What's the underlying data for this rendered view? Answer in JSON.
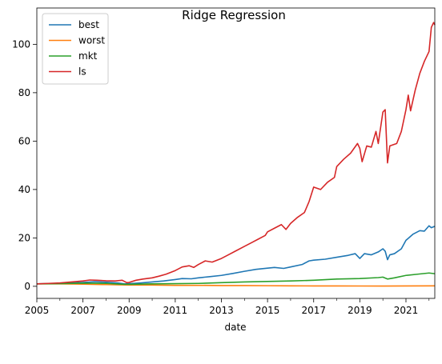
{
  "chart_data": {
    "type": "line",
    "title": "Ridge Regression",
    "xlabel": "date",
    "ylabel": "",
    "xlim": [
      2005.0,
      2022.25
    ],
    "ylim": [
      -5,
      115
    ],
    "x_ticks": [
      2005,
      2007,
      2009,
      2011,
      2013,
      2015,
      2017,
      2019,
      2021
    ],
    "x_tick_labels": [
      "2005",
      "2007",
      "2009",
      "2011",
      "2013",
      "2015",
      "2017",
      "2019",
      "2021"
    ],
    "y_ticks": [
      0,
      20,
      40,
      60,
      80,
      100
    ],
    "y_tick_labels": [
      "0",
      "20",
      "40",
      "60",
      "80",
      "100"
    ],
    "grid": false,
    "legend_position": "top-left",
    "series": [
      {
        "name": "best",
        "color": "#1f77b4",
        "points": [
          [
            2005.0,
            1.0
          ],
          [
            2005.5,
            1.1
          ],
          [
            2006.0,
            1.2
          ],
          [
            2006.5,
            1.4
          ],
          [
            2007.0,
            1.6
          ],
          [
            2007.5,
            1.9
          ],
          [
            2008.0,
            1.7
          ],
          [
            2008.5,
            1.4
          ],
          [
            2008.8,
            1.0
          ],
          [
            2009.0,
            1.1
          ],
          [
            2009.5,
            1.4
          ],
          [
            2010.0,
            1.8
          ],
          [
            2010.5,
            2.2
          ],
          [
            2011.0,
            2.8
          ],
          [
            2011.3,
            3.2
          ],
          [
            2011.7,
            3.1
          ],
          [
            2012.0,
            3.5
          ],
          [
            2012.5,
            4.0
          ],
          [
            2013.0,
            4.5
          ],
          [
            2013.5,
            5.3
          ],
          [
            2014.0,
            6.2
          ],
          [
            2014.5,
            7.0
          ],
          [
            2015.0,
            7.5
          ],
          [
            2015.3,
            7.8
          ],
          [
            2015.7,
            7.4
          ],
          [
            2016.0,
            8.0
          ],
          [
            2016.5,
            9.0
          ],
          [
            2016.8,
            10.5
          ],
          [
            2017.0,
            10.8
          ],
          [
            2017.5,
            11.2
          ],
          [
            2018.0,
            12.0
          ],
          [
            2018.5,
            12.8
          ],
          [
            2018.8,
            13.5
          ],
          [
            2019.0,
            11.5
          ],
          [
            2019.2,
            13.5
          ],
          [
            2019.5,
            13.0
          ],
          [
            2019.8,
            14.2
          ],
          [
            2020.0,
            15.5
          ],
          [
            2020.1,
            14.5
          ],
          [
            2020.2,
            11.0
          ],
          [
            2020.3,
            13.0
          ],
          [
            2020.5,
            13.5
          ],
          [
            2020.8,
            15.5
          ],
          [
            2021.0,
            19.0
          ],
          [
            2021.3,
            21.5
          ],
          [
            2021.6,
            23.0
          ],
          [
            2021.8,
            22.8
          ],
          [
            2022.0,
            25.0
          ],
          [
            2022.1,
            24.2
          ],
          [
            2022.25,
            24.8
          ]
        ]
      },
      {
        "name": "worst",
        "color": "#ff7f0e",
        "points": [
          [
            2005.0,
            1.0
          ],
          [
            2006.0,
            1.0
          ],
          [
            2007.0,
            0.9
          ],
          [
            2008.0,
            0.7
          ],
          [
            2009.0,
            0.5
          ],
          [
            2010.0,
            0.5
          ],
          [
            2011.0,
            0.4
          ],
          [
            2012.0,
            0.4
          ],
          [
            2013.0,
            0.3
          ],
          [
            2014.0,
            0.3
          ],
          [
            2015.0,
            0.25
          ],
          [
            2016.0,
            0.2
          ],
          [
            2017.0,
            0.15
          ],
          [
            2018.0,
            0.15
          ],
          [
            2019.0,
            0.12
          ],
          [
            2020.0,
            0.1
          ],
          [
            2021.0,
            0.15
          ],
          [
            2022.25,
            0.2
          ]
        ]
      },
      {
        "name": "mkt",
        "color": "#2ca02c",
        "points": [
          [
            2005.0,
            1.0
          ],
          [
            2006.0,
            1.1
          ],
          [
            2007.0,
            1.3
          ],
          [
            2008.0,
            1.2
          ],
          [
            2008.8,
            0.8
          ],
          [
            2009.0,
            0.8
          ],
          [
            2010.0,
            1.0
          ],
          [
            2011.0,
            1.1
          ],
          [
            2012.0,
            1.2
          ],
          [
            2013.0,
            1.5
          ],
          [
            2014.0,
            1.8
          ],
          [
            2015.0,
            2.0
          ],
          [
            2016.0,
            2.2
          ],
          [
            2017.0,
            2.5
          ],
          [
            2018.0,
            3.0
          ],
          [
            2019.0,
            3.2
          ],
          [
            2019.8,
            3.6
          ],
          [
            2020.0,
            3.8
          ],
          [
            2020.2,
            3.0
          ],
          [
            2020.5,
            3.5
          ],
          [
            2021.0,
            4.5
          ],
          [
            2021.5,
            5.0
          ],
          [
            2022.0,
            5.5
          ],
          [
            2022.25,
            5.2
          ]
        ]
      },
      {
        "name": "ls",
        "color": "#d62728",
        "points": [
          [
            2005.0,
            1.0
          ],
          [
            2005.5,
            1.2
          ],
          [
            2006.0,
            1.4
          ],
          [
            2006.5,
            1.8
          ],
          [
            2007.0,
            2.2
          ],
          [
            2007.3,
            2.6
          ],
          [
            2007.6,
            2.5
          ],
          [
            2008.0,
            2.3
          ],
          [
            2008.4,
            2.2
          ],
          [
            2008.7,
            2.5
          ],
          [
            2008.9,
            1.5
          ],
          [
            2009.0,
            1.6
          ],
          [
            2009.3,
            2.5
          ],
          [
            2009.6,
            3.0
          ],
          [
            2010.0,
            3.5
          ],
          [
            2010.3,
            4.2
          ],
          [
            2010.6,
            5.0
          ],
          [
            2011.0,
            6.5
          ],
          [
            2011.3,
            8.0
          ],
          [
            2011.6,
            8.5
          ],
          [
            2011.8,
            7.8
          ],
          [
            2012.0,
            9.0
          ],
          [
            2012.3,
            10.5
          ],
          [
            2012.6,
            10.0
          ],
          [
            2013.0,
            11.5
          ],
          [
            2013.3,
            13.0
          ],
          [
            2013.6,
            14.5
          ],
          [
            2014.0,
            16.5
          ],
          [
            2014.3,
            18.0
          ],
          [
            2014.6,
            19.5
          ],
          [
            2014.9,
            21.0
          ],
          [
            2015.0,
            22.5
          ],
          [
            2015.3,
            24.0
          ],
          [
            2015.6,
            25.5
          ],
          [
            2015.8,
            23.5
          ],
          [
            2016.0,
            26.0
          ],
          [
            2016.3,
            28.5
          ],
          [
            2016.6,
            30.5
          ],
          [
            2016.8,
            35.0
          ],
          [
            2017.0,
            41.0
          ],
          [
            2017.3,
            40.0
          ],
          [
            2017.6,
            43.0
          ],
          [
            2017.9,
            45.0
          ],
          [
            2018.0,
            49.5
          ],
          [
            2018.3,
            52.5
          ],
          [
            2018.6,
            55.0
          ],
          [
            2018.9,
            59.0
          ],
          [
            2019.0,
            57.0
          ],
          [
            2019.1,
            51.5
          ],
          [
            2019.3,
            58.0
          ],
          [
            2019.5,
            57.5
          ],
          [
            2019.7,
            64.0
          ],
          [
            2019.8,
            59.0
          ],
          [
            2020.0,
            72.0
          ],
          [
            2020.1,
            73.0
          ],
          [
            2020.2,
            51.0
          ],
          [
            2020.3,
            58.0
          ],
          [
            2020.6,
            59.0
          ],
          [
            2020.8,
            64.0
          ],
          [
            2021.0,
            73.0
          ],
          [
            2021.1,
            79.0
          ],
          [
            2021.2,
            72.5
          ],
          [
            2021.4,
            81.0
          ],
          [
            2021.6,
            88.0
          ],
          [
            2021.8,
            93.0
          ],
          [
            2022.0,
            97.0
          ],
          [
            2022.1,
            107.0
          ],
          [
            2022.2,
            109.0
          ],
          [
            2022.25,
            108.0
          ]
        ]
      }
    ]
  }
}
